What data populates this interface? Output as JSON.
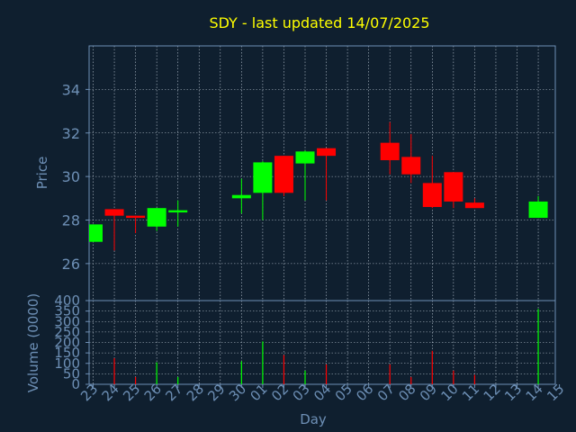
{
  "colors": {
    "background": "#0f1f2f",
    "title": "#ffff00",
    "axis": "#6d8fb5",
    "grid": "#b8c4d0",
    "up": "#00ff00",
    "down": "#ff0000"
  },
  "chart_data": [
    {
      "type": "candlestick",
      "title": "SDY - last updated 14/07/2025",
      "ylabel": "Price",
      "ylim": [
        24.3,
        36.0
      ],
      "yticks": [
        26,
        28,
        30,
        32,
        34
      ],
      "grid": true,
      "x_ticks": [
        "23",
        "24",
        "25",
        "26",
        "27",
        "28",
        "29",
        "30",
        "01",
        "02",
        "03",
        "04",
        "05",
        "06",
        "07",
        "08",
        "09",
        "10",
        "11",
        "12",
        "13",
        "14",
        "15"
      ],
      "candles": [
        {
          "day": "23",
          "open": 27.0,
          "high": 27.8,
          "low": 27.0,
          "close": 27.8
        },
        {
          "day": "24",
          "open": 28.5,
          "high": 28.5,
          "low": 26.6,
          "close": 28.2
        },
        {
          "day": "25",
          "open": 28.2,
          "high": 28.2,
          "low": 27.4,
          "close": 28.1
        },
        {
          "day": "26",
          "open": 27.7,
          "high": 28.55,
          "low": 27.5,
          "close": 28.55
        },
        {
          "day": "27",
          "open": 28.35,
          "high": 28.9,
          "low": 27.7,
          "close": 28.45
        },
        {
          "day": "30",
          "open": 29.0,
          "high": 29.9,
          "low": 28.3,
          "close": 29.15
        },
        {
          "day": "01",
          "open": 29.25,
          "high": 30.7,
          "low": 28.0,
          "close": 30.65
        },
        {
          "day": "02",
          "open": 30.95,
          "high": 30.95,
          "low": 29.1,
          "close": 29.25
        },
        {
          "day": "03",
          "open": 30.6,
          "high": 31.2,
          "low": 28.9,
          "close": 31.15
        },
        {
          "day": "04",
          "open": 31.3,
          "high": 31.3,
          "low": 28.9,
          "close": 30.95
        },
        {
          "day": "07",
          "open": 31.55,
          "high": 32.5,
          "low": 30.1,
          "close": 30.75
        },
        {
          "day": "08",
          "open": 30.9,
          "high": 31.95,
          "low": 29.7,
          "close": 30.1
        },
        {
          "day": "09",
          "open": 29.7,
          "high": 30.95,
          "low": 28.55,
          "close": 28.6
        },
        {
          "day": "10",
          "open": 30.2,
          "high": 30.2,
          "low": 28.55,
          "close": 28.85
        },
        {
          "day": "11",
          "open": 28.8,
          "high": 29.0,
          "low": 28.55,
          "close": 28.55
        },
        {
          "day": "14",
          "open": 28.1,
          "high": 29.1,
          "low": 28.1,
          "close": 28.85
        }
      ]
    },
    {
      "type": "bar",
      "ylabel": "Volume (0000)",
      "xlabel": "Day",
      "ylim": [
        0,
        400
      ],
      "yticks": [
        0,
        50,
        100,
        150,
        200,
        250,
        300,
        350,
        400
      ],
      "categories": [
        "23",
        "24",
        "25",
        "26",
        "27",
        "30",
        "01",
        "02",
        "03",
        "04",
        "07",
        "08",
        "09",
        "10",
        "11",
        "14"
      ],
      "values": [
        0,
        125,
        35,
        105,
        35,
        110,
        205,
        140,
        65,
        95,
        95,
        35,
        160,
        65,
        45,
        360
      ]
    }
  ]
}
